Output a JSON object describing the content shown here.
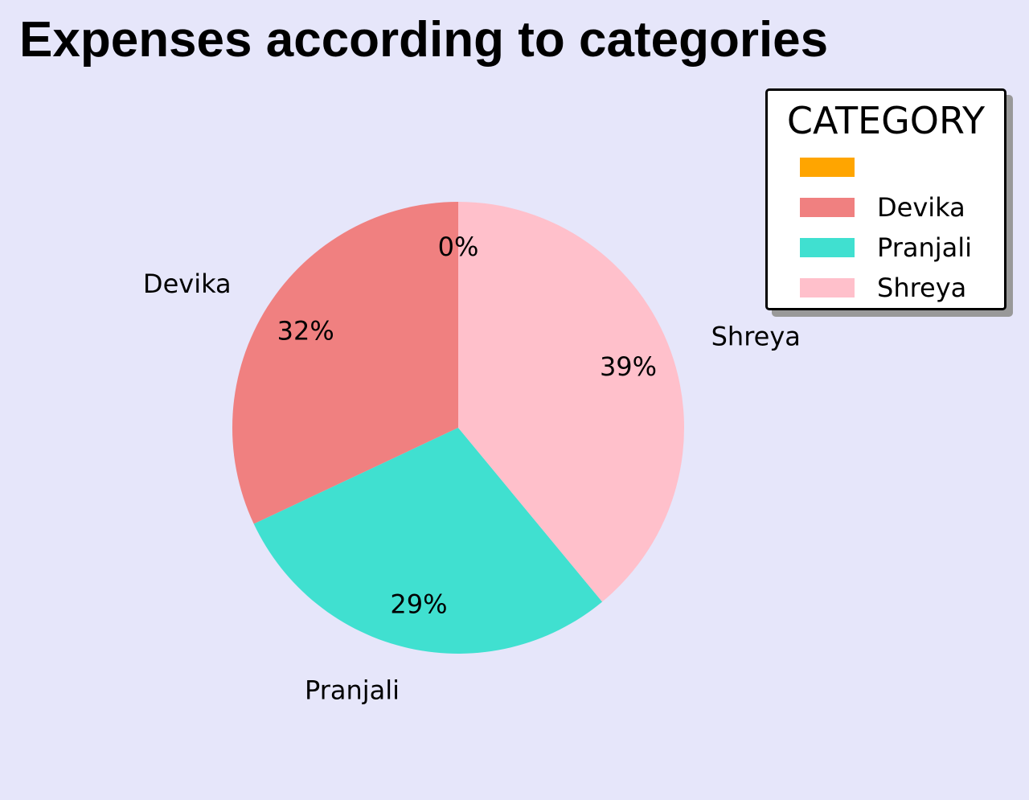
{
  "title": "Expenses according to categories",
  "legend": {
    "title": "CATEGORY",
    "position": "top-right"
  },
  "chart_data": {
    "type": "pie",
    "title": "Expenses according to categories",
    "legend_title": "CATEGORY",
    "start_angle_deg": 90,
    "direction": "counterclockwise",
    "categories": [
      "",
      "Devika",
      "Pranjali",
      "Shreya"
    ],
    "values": [
      0,
      32,
      29,
      39
    ],
    "percent_labels": [
      "0%",
      "32%",
      "29%",
      "39%"
    ],
    "colors": [
      "#ffa500",
      "#f08080",
      "#40e0d0",
      "#ffc0cb"
    ]
  }
}
